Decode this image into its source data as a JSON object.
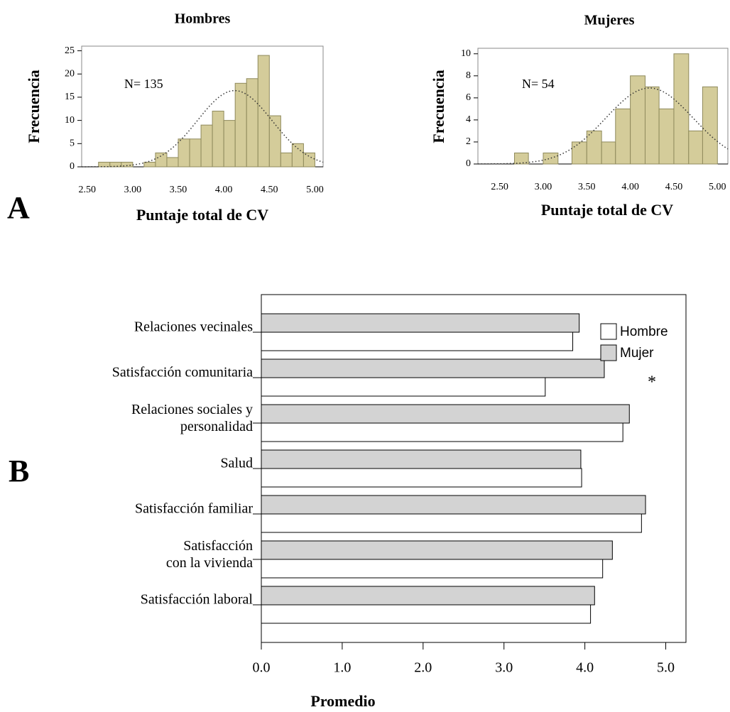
{
  "chart_data": [
    {
      "type": "histogram",
      "panel": "A",
      "title": "Hombres",
      "xlabel": "Puntaje total de CV",
      "ylabel": "Frecuencia",
      "annotation": "N= 135",
      "bins": [
        2.625,
        2.75,
        2.875,
        3.0,
        3.125,
        3.25,
        3.375,
        3.5,
        3.625,
        3.75,
        3.875,
        4.0,
        4.125,
        4.25,
        4.375,
        4.5,
        4.625,
        4.75,
        4.875,
        5.0
      ],
      "values": [
        1,
        1,
        1,
        0,
        1,
        3,
        2,
        6,
        6,
        9,
        12,
        10,
        18,
        19,
        24,
        11,
        3,
        5,
        3
      ],
      "color": "#d4cc9a",
      "edgecolor": "#8f8a5c",
      "normal_curve": {
        "mean": 4.12,
        "sd": 0.41
      },
      "xlim": [
        2.44,
        5.09
      ],
      "ylim": [
        0,
        26
      ],
      "xticks": [
        {
          "value": 2.5,
          "label": "2.50"
        },
        {
          "value": 3.0,
          "label": "3.00"
        },
        {
          "value": 3.5,
          "label": "3.50"
        },
        {
          "value": 4.0,
          "label": "4.00"
        },
        {
          "value": 4.5,
          "label": "4.50"
        },
        {
          "value": 5.0,
          "label": "5.00"
        }
      ],
      "yticks": [
        0,
        5,
        10,
        15,
        20,
        25
      ]
    },
    {
      "type": "histogram",
      "title": "Mujeres",
      "xlabel": "Puntaje total de CV",
      "ylabel": "Frecuencia",
      "annotation": "N= 54",
      "bins": [
        2.67,
        2.83,
        3.0,
        3.17,
        3.33,
        3.5,
        3.67,
        3.83,
        4.0,
        4.17,
        4.33,
        4.5,
        4.67,
        4.83,
        5.0
      ],
      "values": [
        1,
        0,
        1,
        0,
        2,
        3,
        2,
        5,
        8,
        7,
        5,
        10,
        3,
        7
      ],
      "color": "#d4cc9a",
      "edgecolor": "#8f8a5c",
      "normal_curve": {
        "mean": 4.22,
        "sd": 0.5
      },
      "xlim": [
        2.25,
        5.12
      ],
      "ylim": [
        0,
        10.5
      ],
      "xticks": [
        {
          "value": 2.5,
          "label": "2.50"
        },
        {
          "value": 3.0,
          "label": "3.00"
        },
        {
          "value": 3.5,
          "label": "3.50"
        },
        {
          "value": 4.0,
          "label": "4.00"
        },
        {
          "value": 4.5,
          "label": "4.50"
        },
        {
          "value": 5.0,
          "label": "5.00"
        }
      ],
      "yticks": [
        0,
        2,
        4,
        6,
        8,
        10
      ]
    },
    {
      "type": "bar",
      "orientation": "horizontal",
      "panel": "B",
      "xlabel": "Promedio",
      "annotation": "*",
      "legend": "upper right",
      "categories": [
        "Relaciones vecinales",
        "Satisfacción comunitaria",
        "Relaciones sociales y\npersonalidad",
        "Salud",
        "Satisfacción familiar",
        "Satisfacción\ncon la vivienda",
        "Satisfacción laboral"
      ],
      "series": [
        {
          "name": "Hombre",
          "color": "#ffffff",
          "values": [
            3.85,
            3.51,
            4.47,
            3.96,
            4.7,
            4.22,
            4.07
          ]
        },
        {
          "name": "Mujer",
          "color": "#d3d3d3",
          "values": [
            3.93,
            4.24,
            4.55,
            3.95,
            4.75,
            4.34,
            4.12
          ]
        }
      ],
      "xlim": [
        0,
        5.25
      ],
      "xticks": [
        {
          "value": 0,
          "label": "0.0"
        },
        {
          "value": 1,
          "label": "1.0"
        },
        {
          "value": 2,
          "label": "2.0"
        },
        {
          "value": 3,
          "label": "3.0"
        },
        {
          "value": 4,
          "label": "4.0"
        },
        {
          "value": 5,
          "label": "5.0"
        }
      ]
    }
  ]
}
